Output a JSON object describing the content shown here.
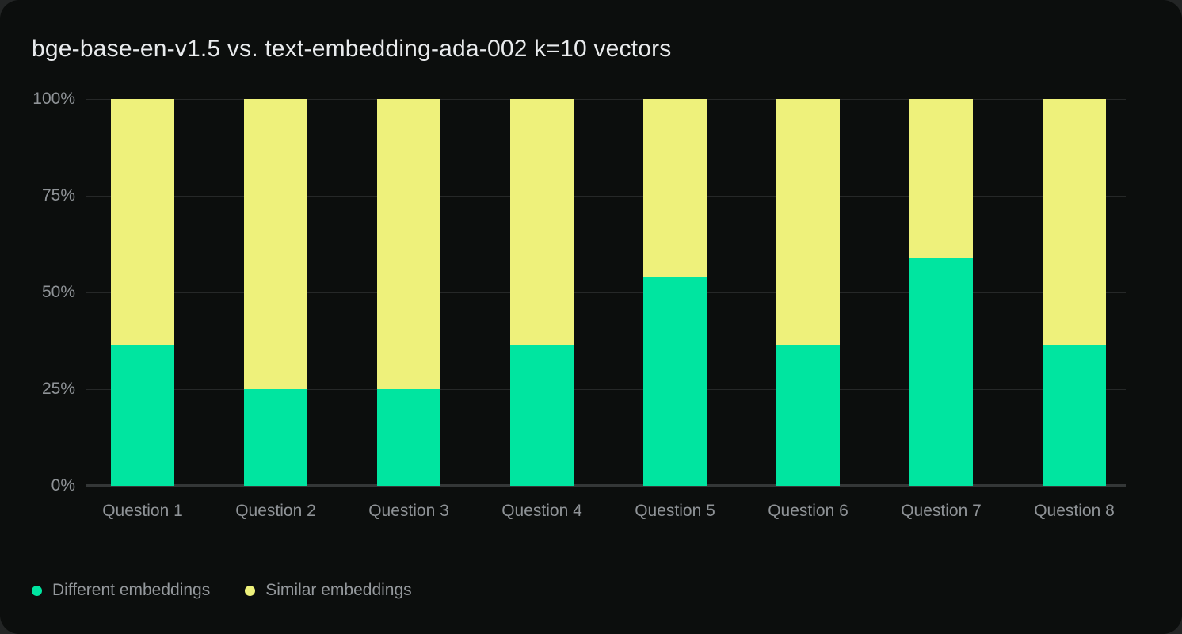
{
  "window": {
    "outer_background": "#232525",
    "card_background": "#0c0e0d"
  },
  "chart_data": {
    "type": "bar",
    "stacked": true,
    "title": "bge-base-en-v1.5 vs. text-embedding-ada-002 k=10 vectors",
    "categories": [
      "Question 1",
      "Question 2",
      "Question 3",
      "Question 4",
      "Question 5",
      "Question 6",
      "Question 7",
      "Question 8"
    ],
    "series": [
      {
        "name": "Different embeddings",
        "color": "#00e5a0",
        "values": [
          36.4,
          25,
          25,
          36.4,
          54,
          36.4,
          59,
          36.4
        ]
      },
      {
        "name": "Similar embeddings",
        "color": "#eef17b",
        "values": [
          63.6,
          75,
          75,
          63.6,
          46,
          63.6,
          41,
          63.6
        ]
      }
    ],
    "value_unit": "%",
    "xlabel": "",
    "ylabel": "",
    "ylim": [
      0,
      100
    ],
    "y_ticks": [
      "0%",
      "25%",
      "50%",
      "75%",
      "100%"
    ],
    "grid": true,
    "grid_color": "#262828",
    "axis_line_color": "#343737",
    "tick_label_color": "#8f9397",
    "title_color": "#e9ebed",
    "legend_position": "bottom-left",
    "legend_text_color": "#94989c"
  }
}
